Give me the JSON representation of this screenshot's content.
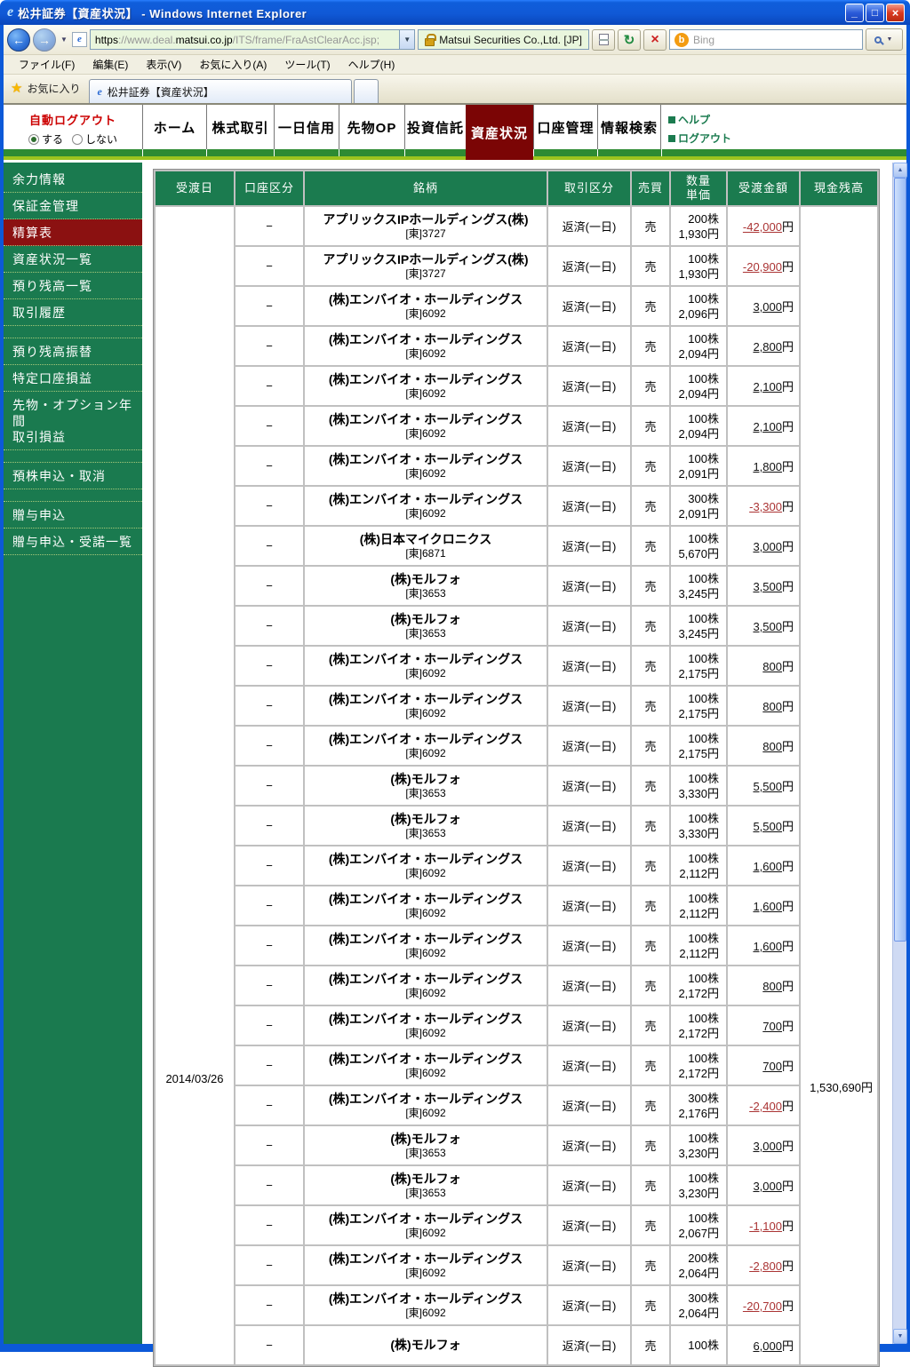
{
  "window": {
    "title": "松井証券【資産状況】 - Windows Internet Explorer",
    "buttons": {
      "minimize": "_",
      "maximize": "□",
      "close": "×"
    }
  },
  "browser": {
    "url_scheme": "https",
    "url_dim1": "://www.deal.",
    "url_domain": "matsui.co.jp",
    "url_path": "/ITS/frame/FraAstClearAcc.jsp;",
    "certificate": "Matsui Securities Co.,Ltd. [JP]",
    "search_placeholder": "Bing",
    "search_logo_letter": "b",
    "ie_logo_letter": "e",
    "menu_items": [
      "ファイル(F)",
      "編集(E)",
      "表示(V)",
      "お気に入り(A)",
      "ツール(T)",
      "ヘルプ(H)"
    ],
    "favorites_label": "お気に入り",
    "tab_title": "松井証券【資産状況】"
  },
  "icons": {
    "back": "←",
    "forward": "→",
    "dropdown": "▼",
    "refresh": "↻",
    "stop": "×",
    "star": "★",
    "scroll_up": "▲",
    "scroll_down": "▼"
  },
  "site_nav": {
    "auto_logout_label": "自動ログアウト",
    "auto_logout_options": [
      "する",
      "しない"
    ],
    "auto_logout_selected": "する",
    "tabs": [
      "ホーム",
      "株式取引",
      "一日信用",
      "先物OP",
      "投資信託",
      "資産状況",
      "口座管理",
      "情報検索"
    ],
    "active_tab": "資産状況",
    "links": [
      "ヘルプ",
      "ログアウト"
    ]
  },
  "sidebar": {
    "items": [
      {
        "label": "余力情報"
      },
      {
        "label": "保証金管理"
      },
      {
        "label": "精算表",
        "selected": true
      },
      {
        "label": "資産状況一覧"
      },
      {
        "label": "預り残高一覧"
      },
      {
        "label": "取引履歴"
      },
      {
        "spacer": true
      },
      {
        "label": "預り残高振替"
      },
      {
        "label": "特定口座損益"
      },
      {
        "label": "先物・オプション年間\n取引損益"
      },
      {
        "spacer": true
      },
      {
        "label": "預株申込・取消"
      },
      {
        "spacer": true
      },
      {
        "label": "贈与申込"
      },
      {
        "label": "贈与申込・受諾一覧"
      }
    ]
  },
  "table": {
    "headers": [
      "受渡日",
      "口座区分",
      "銘柄",
      "取引区分",
      "売買",
      "数量\n単価",
      "受渡金額",
      "現金残高"
    ],
    "delivery_date": "2014/03/26",
    "cash_balance": "1,530,690円",
    "currency_suffix": "円",
    "rows": [
      {
        "account": "−",
        "name": "アプリックスIPホールディングス(株)",
        "code": "[東]3727",
        "trade_type": "返済(一日)",
        "side": "売",
        "qty": "200株",
        "price": "1,930円",
        "amount": "-42,000"
      },
      {
        "account": "−",
        "name": "アプリックスIPホールディングス(株)",
        "code": "[東]3727",
        "trade_type": "返済(一日)",
        "side": "売",
        "qty": "100株",
        "price": "1,930円",
        "amount": "-20,900"
      },
      {
        "account": "−",
        "name": "(株)エンバイオ・ホールディングス",
        "code": "[東]6092",
        "trade_type": "返済(一日)",
        "side": "売",
        "qty": "100株",
        "price": "2,096円",
        "amount": "3,000"
      },
      {
        "account": "−",
        "name": "(株)エンバイオ・ホールディングス",
        "code": "[東]6092",
        "trade_type": "返済(一日)",
        "side": "売",
        "qty": "100株",
        "price": "2,094円",
        "amount": "2,800"
      },
      {
        "account": "−",
        "name": "(株)エンバイオ・ホールディングス",
        "code": "[東]6092",
        "trade_type": "返済(一日)",
        "side": "売",
        "qty": "100株",
        "price": "2,094円",
        "amount": "2,100"
      },
      {
        "account": "−",
        "name": "(株)エンバイオ・ホールディングス",
        "code": "[東]6092",
        "trade_type": "返済(一日)",
        "side": "売",
        "qty": "100株",
        "price": "2,094円",
        "amount": "2,100"
      },
      {
        "account": "−",
        "name": "(株)エンバイオ・ホールディングス",
        "code": "[東]6092",
        "trade_type": "返済(一日)",
        "side": "売",
        "qty": "100株",
        "price": "2,091円",
        "amount": "1,800"
      },
      {
        "account": "−",
        "name": "(株)エンバイオ・ホールディングス",
        "code": "[東]6092",
        "trade_type": "返済(一日)",
        "side": "売",
        "qty": "300株",
        "price": "2,091円",
        "amount": "-3,300"
      },
      {
        "account": "−",
        "name": "(株)日本マイクロニクス",
        "code": "[東]6871",
        "trade_type": "返済(一日)",
        "side": "売",
        "qty": "100株",
        "price": "5,670円",
        "amount": "3,000"
      },
      {
        "account": "−",
        "name": "(株)モルフォ",
        "code": "[東]3653",
        "trade_type": "返済(一日)",
        "side": "売",
        "qty": "100株",
        "price": "3,245円",
        "amount": "3,500"
      },
      {
        "account": "−",
        "name": "(株)モルフォ",
        "code": "[東]3653",
        "trade_type": "返済(一日)",
        "side": "売",
        "qty": "100株",
        "price": "3,245円",
        "amount": "3,500"
      },
      {
        "account": "−",
        "name": "(株)エンバイオ・ホールディングス",
        "code": "[東]6092",
        "trade_type": "返済(一日)",
        "side": "売",
        "qty": "100株",
        "price": "2,175円",
        "amount": "800"
      },
      {
        "account": "−",
        "name": "(株)エンバイオ・ホールディングス",
        "code": "[東]6092",
        "trade_type": "返済(一日)",
        "side": "売",
        "qty": "100株",
        "price": "2,175円",
        "amount": "800"
      },
      {
        "account": "−",
        "name": "(株)エンバイオ・ホールディングス",
        "code": "[東]6092",
        "trade_type": "返済(一日)",
        "side": "売",
        "qty": "100株",
        "price": "2,175円",
        "amount": "800"
      },
      {
        "account": "−",
        "name": "(株)モルフォ",
        "code": "[東]3653",
        "trade_type": "返済(一日)",
        "side": "売",
        "qty": "100株",
        "price": "3,330円",
        "amount": "5,500"
      },
      {
        "account": "−",
        "name": "(株)モルフォ",
        "code": "[東]3653",
        "trade_type": "返済(一日)",
        "side": "売",
        "qty": "100株",
        "price": "3,330円",
        "amount": "5,500"
      },
      {
        "account": "−",
        "name": "(株)エンバイオ・ホールディングス",
        "code": "[東]6092",
        "trade_type": "返済(一日)",
        "side": "売",
        "qty": "100株",
        "price": "2,112円",
        "amount": "1,600"
      },
      {
        "account": "−",
        "name": "(株)エンバイオ・ホールディングス",
        "code": "[東]6092",
        "trade_type": "返済(一日)",
        "side": "売",
        "qty": "100株",
        "price": "2,112円",
        "amount": "1,600"
      },
      {
        "account": "−",
        "name": "(株)エンバイオ・ホールディングス",
        "code": "[東]6092",
        "trade_type": "返済(一日)",
        "side": "売",
        "qty": "100株",
        "price": "2,112円",
        "amount": "1,600"
      },
      {
        "account": "−",
        "name": "(株)エンバイオ・ホールディングス",
        "code": "[東]6092",
        "trade_type": "返済(一日)",
        "side": "売",
        "qty": "100株",
        "price": "2,172円",
        "amount": "800"
      },
      {
        "account": "−",
        "name": "(株)エンバイオ・ホールディングス",
        "code": "[東]6092",
        "trade_type": "返済(一日)",
        "side": "売",
        "qty": "100株",
        "price": "2,172円",
        "amount": "700"
      },
      {
        "account": "−",
        "name": "(株)エンバイオ・ホールディングス",
        "code": "[東]6092",
        "trade_type": "返済(一日)",
        "side": "売",
        "qty": "100株",
        "price": "2,172円",
        "amount": "700"
      },
      {
        "account": "−",
        "name": "(株)エンバイオ・ホールディングス",
        "code": "[東]6092",
        "trade_type": "返済(一日)",
        "side": "売",
        "qty": "300株",
        "price": "2,176円",
        "amount": "-2,400"
      },
      {
        "account": "−",
        "name": "(株)モルフォ",
        "code": "[東]3653",
        "trade_type": "返済(一日)",
        "side": "売",
        "qty": "100株",
        "price": "3,230円",
        "amount": "3,000"
      },
      {
        "account": "−",
        "name": "(株)モルフォ",
        "code": "[東]3653",
        "trade_type": "返済(一日)",
        "side": "売",
        "qty": "100株",
        "price": "3,230円",
        "amount": "3,000"
      },
      {
        "account": "−",
        "name": "(株)エンバイオ・ホールディングス",
        "code": "[東]6092",
        "trade_type": "返済(一日)",
        "side": "売",
        "qty": "100株",
        "price": "2,067円",
        "amount": "-1,100"
      },
      {
        "account": "−",
        "name": "(株)エンバイオ・ホールディングス",
        "code": "[東]6092",
        "trade_type": "返済(一日)",
        "side": "売",
        "qty": "200株",
        "price": "2,064円",
        "amount": "-2,800"
      },
      {
        "account": "−",
        "name": "(株)エンバイオ・ホールディングス",
        "code": "[東]6092",
        "trade_type": "返済(一日)",
        "side": "売",
        "qty": "300株",
        "price": "2,064円",
        "amount": "-20,700"
      },
      {
        "account": "−",
        "name": "(株)モルフォ",
        "code": "",
        "trade_type": "返済(一日)",
        "side": "売",
        "qty": "100株",
        "price": "",
        "amount": "6,000"
      }
    ]
  },
  "colors": {
    "site_green": "#1a7a4f",
    "bar_green": "#2e8b33",
    "lime": "#9dc41e",
    "active_tab_red": "#7b0505",
    "selected_item_red": "#8b1111",
    "negative_amount": "#aa3333",
    "auto_logout_red": "#cc0000",
    "titlebar_blue": "#0c59d8"
  }
}
